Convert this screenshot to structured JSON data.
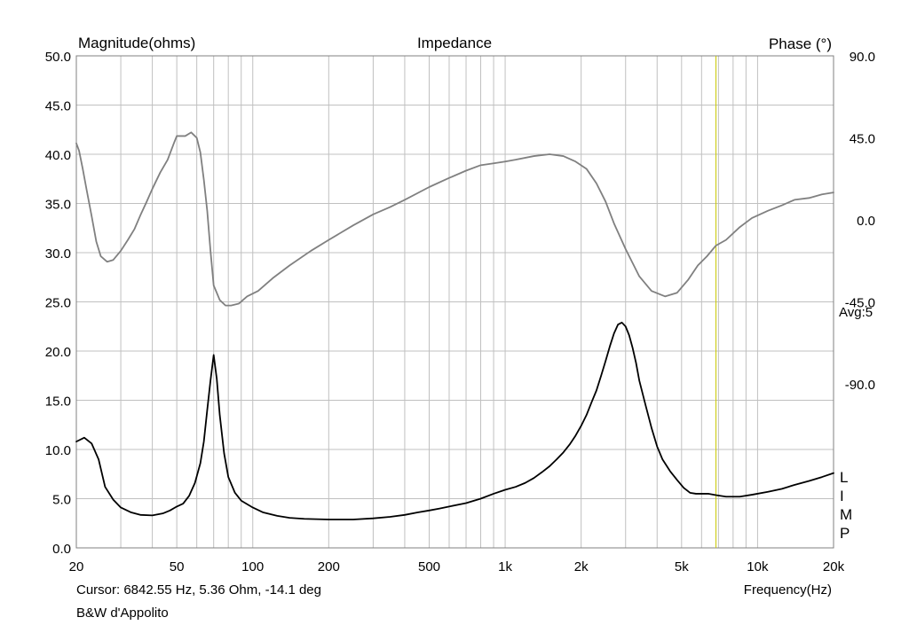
{
  "chart_data": {
    "type": "line",
    "title": "Impedance",
    "ylabel": "Magnitude(ohms)",
    "y2label": "Phase (°)",
    "xlabel": "Frequency(Hz)",
    "x_scale": "log",
    "xlim": [
      20,
      20000
    ],
    "ylim": [
      0,
      50
    ],
    "y2lim": [
      -180,
      90
    ],
    "grid": true,
    "x_ticks": [
      {
        "value": 20,
        "label": "20"
      },
      {
        "value": 50,
        "label": "50"
      },
      {
        "value": 100,
        "label": "100"
      },
      {
        "value": 200,
        "label": "200"
      },
      {
        "value": 500,
        "label": "500"
      },
      {
        "value": 1000,
        "label": "1k"
      },
      {
        "value": 2000,
        "label": "2k"
      },
      {
        "value": 5000,
        "label": "5k"
      },
      {
        "value": 10000,
        "label": "10k"
      },
      {
        "value": 20000,
        "label": "20k"
      }
    ],
    "y_ticks": [
      {
        "value": 0,
        "label": "0.0"
      },
      {
        "value": 5,
        "label": "5.0"
      },
      {
        "value": 10,
        "label": "10.0"
      },
      {
        "value": 15,
        "label": "15.0"
      },
      {
        "value": 20,
        "label": "20.0"
      },
      {
        "value": 25,
        "label": "25.0"
      },
      {
        "value": 30,
        "label": "30.0"
      },
      {
        "value": 35,
        "label": "35.0"
      },
      {
        "value": 40,
        "label": "40.0"
      },
      {
        "value": 45,
        "label": "45.0"
      },
      {
        "value": 50,
        "label": "50.0"
      }
    ],
    "y2_ticks": [
      {
        "value": 90,
        "label": "90.0"
      },
      {
        "value": 45,
        "label": "45.0"
      },
      {
        "value": 0,
        "label": "0.0"
      },
      {
        "value": -45,
        "label": "-45.0"
      },
      {
        "value": -90,
        "label": "-90.0"
      }
    ],
    "average_label": "Avg:5",
    "trace_flags": "LIMP",
    "cursor": {
      "frequency_hz": 6842.55,
      "label": "Cursor: 6842.55 Hz, 5.36 Ohm, -14.1 deg",
      "color": "#c8c800"
    },
    "note": "B&W d'Appolito",
    "series": [
      {
        "key": "magnitude",
        "axis": "left",
        "color": "#000000",
        "points": [
          [
            20,
            10.8
          ],
          [
            21.5,
            11.2
          ],
          [
            23,
            10.6
          ],
          [
            24.5,
            9.0
          ],
          [
            26,
            6.2
          ],
          [
            28,
            4.9
          ],
          [
            30,
            4.1
          ],
          [
            33,
            3.6
          ],
          [
            36,
            3.35
          ],
          [
            40,
            3.3
          ],
          [
            44,
            3.5
          ],
          [
            47,
            3.8
          ],
          [
            50,
            4.2
          ],
          [
            53,
            4.5
          ],
          [
            56,
            5.3
          ],
          [
            59,
            6.6
          ],
          [
            62,
            8.6
          ],
          [
            64,
            10.8
          ],
          [
            66,
            14.0
          ],
          [
            68,
            17.0
          ],
          [
            70,
            19.6
          ],
          [
            72,
            17.2
          ],
          [
            74,
            13.5
          ],
          [
            77,
            9.6
          ],
          [
            80,
            7.2
          ],
          [
            85,
            5.6
          ],
          [
            90,
            4.8
          ],
          [
            100,
            4.1
          ],
          [
            110,
            3.6
          ],
          [
            125,
            3.25
          ],
          [
            140,
            3.05
          ],
          [
            160,
            2.95
          ],
          [
            200,
            2.88
          ],
          [
            250,
            2.88
          ],
          [
            300,
            3.0
          ],
          [
            350,
            3.15
          ],
          [
            400,
            3.35
          ],
          [
            450,
            3.6
          ],
          [
            500,
            3.8
          ],
          [
            550,
            4.0
          ],
          [
            600,
            4.2
          ],
          [
            700,
            4.55
          ],
          [
            800,
            5.0
          ],
          [
            900,
            5.5
          ],
          [
            1000,
            5.9
          ],
          [
            1100,
            6.2
          ],
          [
            1200,
            6.6
          ],
          [
            1300,
            7.1
          ],
          [
            1400,
            7.7
          ],
          [
            1500,
            8.3
          ],
          [
            1600,
            9.0
          ],
          [
            1700,
            9.7
          ],
          [
            1800,
            10.5
          ],
          [
            1900,
            11.4
          ],
          [
            2000,
            12.4
          ],
          [
            2100,
            13.5
          ],
          [
            2200,
            14.8
          ],
          [
            2300,
            16.0
          ],
          [
            2400,
            17.5
          ],
          [
            2500,
            19.0
          ],
          [
            2600,
            20.5
          ],
          [
            2700,
            21.8
          ],
          [
            2800,
            22.7
          ],
          [
            2900,
            22.9
          ],
          [
            3000,
            22.5
          ],
          [
            3100,
            21.6
          ],
          [
            3200,
            20.3
          ],
          [
            3300,
            18.8
          ],
          [
            3400,
            17.0
          ],
          [
            3600,
            14.5
          ],
          [
            3800,
            12.2
          ],
          [
            4000,
            10.3
          ],
          [
            4200,
            9.0
          ],
          [
            4500,
            7.8
          ],
          [
            4800,
            6.9
          ],
          [
            5100,
            6.1
          ],
          [
            5400,
            5.6
          ],
          [
            5700,
            5.5
          ],
          [
            6000,
            5.5
          ],
          [
            6400,
            5.5
          ],
          [
            6842.55,
            5.36
          ],
          [
            7500,
            5.2
          ],
          [
            8500,
            5.2
          ],
          [
            9500,
            5.4
          ],
          [
            11000,
            5.7
          ],
          [
            12500,
            6.0
          ],
          [
            14000,
            6.4
          ],
          [
            16000,
            6.8
          ],
          [
            18000,
            7.2
          ],
          [
            20000,
            7.6
          ]
        ]
      },
      {
        "key": "phase",
        "axis": "right",
        "color": "#808080",
        "points": [
          [
            20,
            42
          ],
          [
            20.5,
            38
          ],
          [
            21.2,
            28
          ],
          [
            22,
            16
          ],
          [
            23,
            2
          ],
          [
            24,
            -12
          ],
          [
            25,
            -20
          ],
          [
            26.5,
            -23
          ],
          [
            28,
            -22
          ],
          [
            30,
            -17
          ],
          [
            32,
            -11
          ],
          [
            34,
            -5
          ],
          [
            36,
            3
          ],
          [
            38,
            10
          ],
          [
            40,
            17
          ],
          [
            43,
            26
          ],
          [
            46,
            33
          ],
          [
            49,
            43
          ],
          [
            50,
            46
          ],
          [
            54,
            46
          ],
          [
            57,
            48
          ],
          [
            60,
            45
          ],
          [
            62,
            37
          ],
          [
            64,
            22
          ],
          [
            66,
            5
          ],
          [
            68,
            -17
          ],
          [
            70,
            -36
          ],
          [
            72,
            -40
          ],
          [
            74,
            -44
          ],
          [
            78,
            -47
          ],
          [
            82,
            -47
          ],
          [
            88,
            -46
          ],
          [
            95,
            -42
          ],
          [
            105,
            -39
          ],
          [
            120,
            -32
          ],
          [
            140,
            -25
          ],
          [
            170,
            -17
          ],
          [
            200,
            -11
          ],
          [
            250,
            -3
          ],
          [
            300,
            3
          ],
          [
            350,
            7
          ],
          [
            400,
            11
          ],
          [
            500,
            18
          ],
          [
            600,
            23
          ],
          [
            700,
            27
          ],
          [
            800,
            30
          ],
          [
            900,
            31
          ],
          [
            1000,
            32
          ],
          [
            1100,
            33
          ],
          [
            1300,
            35
          ],
          [
            1500,
            36
          ],
          [
            1700,
            35
          ],
          [
            1900,
            32
          ],
          [
            2100,
            28
          ],
          [
            2300,
            20
          ],
          [
            2500,
            10
          ],
          [
            2700,
            -2
          ],
          [
            3000,
            -16
          ],
          [
            3400,
            -31
          ],
          [
            3800,
            -39
          ],
          [
            4300,
            -42
          ],
          [
            4800,
            -40
          ],
          [
            5300,
            -33
          ],
          [
            5800,
            -25
          ],
          [
            6300,
            -20
          ],
          [
            6842.55,
            -14.1
          ],
          [
            7500,
            -11
          ],
          [
            8500,
            -4
          ],
          [
            9500,
            1
          ],
          [
            11000,
            5
          ],
          [
            12500,
            8
          ],
          [
            14000,
            11
          ],
          [
            16000,
            12
          ],
          [
            18000,
            14
          ],
          [
            20000,
            15
          ]
        ]
      }
    ]
  }
}
